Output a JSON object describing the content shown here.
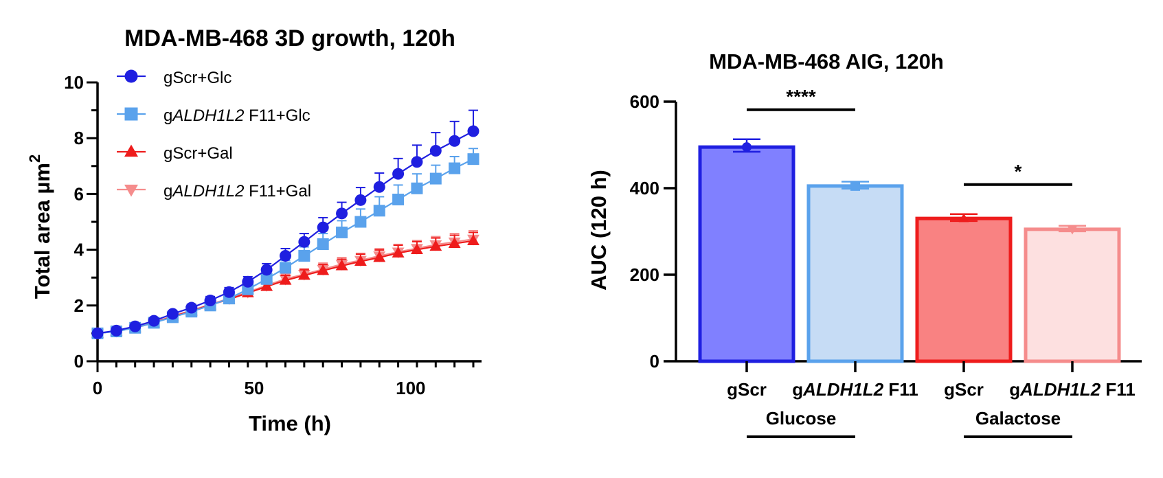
{
  "chart_data": [
    {
      "type": "line",
      "title": "MDA-MB-468 3D growth, 120h",
      "xlabel": "Time (h)",
      "ylabel": "Total area µm",
      "ylabel_superscript": "2",
      "xlim": [
        0,
        120
      ],
      "ylim": [
        0,
        10
      ],
      "x_ticks": [
        0,
        50,
        100
      ],
      "y_ticks": [
        0,
        2,
        4,
        6,
        8,
        10
      ],
      "x": [
        0,
        6,
        12,
        18,
        24,
        30,
        36,
        42,
        48,
        54,
        60,
        66,
        72,
        78,
        84,
        90,
        96,
        102,
        108,
        114,
        120
      ],
      "series": [
        {
          "name": "gScr+Glc",
          "legend_prefix": "g",
          "legend_italic": "",
          "legend_suffix": "Scr+Glc",
          "color": "#1f1fe0",
          "marker": "circle",
          "values": [
            1.0,
            1.1,
            1.25,
            1.45,
            1.7,
            1.92,
            2.18,
            2.48,
            2.85,
            3.28,
            3.78,
            4.28,
            4.8,
            5.3,
            5.78,
            6.25,
            6.72,
            7.15,
            7.55,
            7.9,
            8.25
          ],
          "errors": [
            0.05,
            0.06,
            0.07,
            0.08,
            0.1,
            0.12,
            0.14,
            0.16,
            0.18,
            0.22,
            0.26,
            0.3,
            0.35,
            0.4,
            0.45,
            0.5,
            0.55,
            0.6,
            0.65,
            0.7,
            0.75
          ]
        },
        {
          "name": "gALDH1L2 F11+Glc",
          "legend_prefix": "g",
          "legend_italic": "ALDH1L2",
          "legend_suffix": " F11+Glc",
          "color": "#5aa2ec",
          "marker": "square",
          "values": [
            1.0,
            1.07,
            1.2,
            1.38,
            1.58,
            1.78,
            2.0,
            2.25,
            2.58,
            2.95,
            3.35,
            3.78,
            4.2,
            4.62,
            5.0,
            5.4,
            5.8,
            6.2,
            6.55,
            6.92,
            7.25
          ],
          "errors": [
            0.05,
            0.06,
            0.07,
            0.08,
            0.09,
            0.11,
            0.13,
            0.15,
            0.18,
            0.22,
            0.26,
            0.32,
            0.38,
            0.42,
            0.46,
            0.5,
            0.52,
            0.52,
            0.48,
            0.42,
            0.38
          ]
        },
        {
          "name": "gScr+Gal",
          "legend_prefix": "g",
          "legend_italic": "",
          "legend_suffix": "Scr+Gal",
          "color": "#ee1c1c",
          "marker": "triangle-up",
          "values": [
            1.0,
            1.08,
            1.2,
            1.38,
            1.6,
            1.8,
            2.02,
            2.22,
            2.45,
            2.68,
            2.9,
            3.08,
            3.25,
            3.42,
            3.58,
            3.72,
            3.88,
            4.0,
            4.12,
            4.22,
            4.32
          ],
          "errors": [
            0.05,
            0.06,
            0.06,
            0.07,
            0.08,
            0.09,
            0.1,
            0.12,
            0.14,
            0.16,
            0.18,
            0.2,
            0.22,
            0.24,
            0.26,
            0.27,
            0.28,
            0.29,
            0.3,
            0.3,
            0.3
          ]
        },
        {
          "name": "gALDH1L2 F11+Gal",
          "legend_prefix": "g",
          "legend_italic": "ALDH1L2",
          "legend_suffix": " F11+Gal",
          "color": "#f58c8c",
          "marker": "triangle-down",
          "values": [
            1.0,
            1.08,
            1.22,
            1.4,
            1.62,
            1.82,
            2.04,
            2.25,
            2.48,
            2.72,
            2.95,
            3.12,
            3.3,
            3.48,
            3.62,
            3.78,
            3.92,
            4.05,
            4.18,
            4.28,
            4.38
          ],
          "errors": [
            0.05,
            0.06,
            0.06,
            0.07,
            0.08,
            0.09,
            0.1,
            0.12,
            0.14,
            0.16,
            0.18,
            0.2,
            0.22,
            0.24,
            0.25,
            0.26,
            0.27,
            0.28,
            0.29,
            0.3,
            0.3
          ]
        }
      ]
    },
    {
      "type": "bar",
      "title": "MDA-MB-468 AIG, 120h",
      "xlabel": "",
      "ylabel": "AUC (120 h)",
      "ylim": [
        0,
        600
      ],
      "y_ticks": [
        0,
        200,
        400,
        600
      ],
      "categories": [
        "gScr",
        "gALDH1L2 F11",
        "gScr",
        "gALDH1L2 F11"
      ],
      "category_labels": [
        {
          "prefix": "g",
          "italic": "",
          "suffix": "Scr"
        },
        {
          "prefix": "g",
          "italic": "ALDH1L2",
          "suffix": " F11"
        },
        {
          "prefix": "g",
          "italic": "",
          "suffix": "Scr"
        },
        {
          "prefix": "g",
          "italic": "ALDH1L2",
          "suffix": " F11"
        }
      ],
      "values": [
        495,
        405,
        330,
        305
      ],
      "errors": [
        18,
        10,
        10,
        8
      ],
      "bar_fill": [
        "#8080ff",
        "#c6dcf5",
        "#f98282",
        "#fde0e0"
      ],
      "bar_stroke": [
        "#1f1fe0",
        "#5aa2ec",
        "#ee1c1c",
        "#f58c8c"
      ],
      "groups": [
        {
          "label": "Glucose",
          "bars": [
            0,
            1
          ]
        },
        {
          "label": "Galactose",
          "bars": [
            2,
            3
          ]
        }
      ],
      "significance": [
        {
          "label": "****",
          "from": 0,
          "to": 1
        },
        {
          "label": "*",
          "from": 2,
          "to": 3
        }
      ]
    }
  ]
}
